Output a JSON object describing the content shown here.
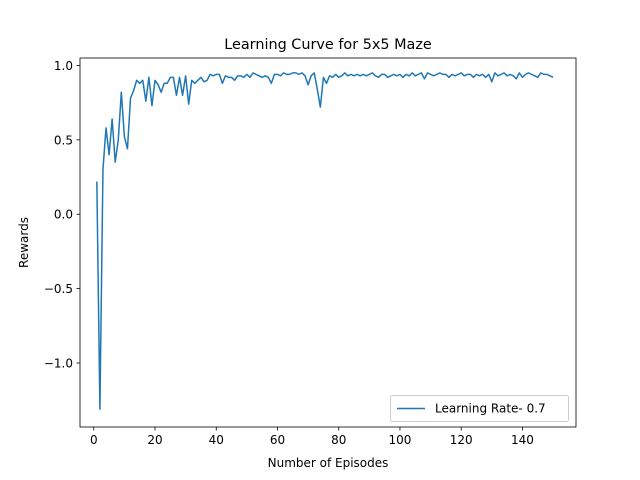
{
  "chart_data": {
    "type": "line",
    "title": "Learning Curve for 5x5 Maze",
    "xlabel": "Number of Episodes",
    "ylabel": "Rewards",
    "xlim": [
      -4.5,
      157.5
    ],
    "ylim": [
      -1.43,
      1.05
    ],
    "xticks": [
      0,
      20,
      40,
      60,
      80,
      100,
      120,
      140
    ],
    "xtick_labels": [
      "0",
      "20",
      "40",
      "60",
      "80",
      "100",
      "120",
      "140"
    ],
    "yticks": [
      -1.0,
      -0.5,
      0.0,
      0.5,
      1.0
    ],
    "ytick_labels": [
      "−1.0",
      "−0.5",
      "0.0",
      "0.5",
      "1.0"
    ],
    "grid": false,
    "legend_position": "lower-right",
    "series": [
      {
        "name": "Learning Rate- 0.7",
        "color": "#1f77b4",
        "x": [
          1,
          2,
          3,
          4,
          5,
          6,
          7,
          8,
          9,
          10,
          11,
          12,
          13,
          14,
          15,
          16,
          17,
          18,
          19,
          20,
          21,
          22,
          23,
          24,
          25,
          26,
          27,
          28,
          29,
          30,
          31,
          32,
          33,
          34,
          35,
          36,
          37,
          38,
          39,
          40,
          41,
          42,
          43,
          44,
          45,
          46,
          47,
          48,
          49,
          50,
          51,
          52,
          53,
          54,
          55,
          56,
          57,
          58,
          59,
          60,
          61,
          62,
          63,
          64,
          65,
          66,
          67,
          68,
          69,
          70,
          71,
          72,
          73,
          74,
          75,
          76,
          77,
          78,
          79,
          80,
          81,
          82,
          83,
          84,
          85,
          86,
          87,
          88,
          89,
          90,
          91,
          92,
          93,
          94,
          95,
          96,
          97,
          98,
          99,
          100,
          101,
          102,
          103,
          104,
          105,
          106,
          107,
          108,
          109,
          110,
          111,
          112,
          113,
          114,
          115,
          116,
          117,
          118,
          119,
          120,
          121,
          122,
          123,
          124,
          125,
          126,
          127,
          128,
          129,
          130,
          131,
          132,
          133,
          134,
          135,
          136,
          137,
          138,
          139,
          140,
          141,
          142,
          143,
          144,
          145,
          146,
          147,
          148,
          149,
          150
        ],
        "y": [
          0.22,
          -1.31,
          0.3,
          0.58,
          0.4,
          0.64,
          0.35,
          0.5,
          0.82,
          0.52,
          0.44,
          0.78,
          0.83,
          0.9,
          0.88,
          0.9,
          0.76,
          0.92,
          0.73,
          0.9,
          0.87,
          0.82,
          0.88,
          0.88,
          0.92,
          0.92,
          0.8,
          0.92,
          0.8,
          0.93,
          0.74,
          0.9,
          0.88,
          0.9,
          0.92,
          0.89,
          0.9,
          0.94,
          0.93,
          0.94,
          0.94,
          0.88,
          0.93,
          0.92,
          0.92,
          0.9,
          0.93,
          0.93,
          0.92,
          0.94,
          0.92,
          0.95,
          0.94,
          0.93,
          0.92,
          0.93,
          0.92,
          0.88,
          0.94,
          0.94,
          0.93,
          0.95,
          0.94,
          0.94,
          0.95,
          0.95,
          0.94,
          0.95,
          0.93,
          0.87,
          0.93,
          0.95,
          0.84,
          0.72,
          0.92,
          0.88,
          0.93,
          0.92,
          0.94,
          0.92,
          0.93,
          0.95,
          0.93,
          0.94,
          0.93,
          0.94,
          0.93,
          0.94,
          0.93,
          0.94,
          0.95,
          0.93,
          0.92,
          0.94,
          0.94,
          0.92,
          0.93,
          0.94,
          0.93,
          0.94,
          0.92,
          0.94,
          0.93,
          0.95,
          0.93,
          0.94,
          0.95,
          0.91,
          0.95,
          0.94,
          0.93,
          0.94,
          0.95,
          0.94,
          0.94,
          0.92,
          0.94,
          0.93,
          0.94,
          0.95,
          0.93,
          0.94,
          0.94,
          0.92,
          0.94,
          0.93,
          0.94,
          0.92,
          0.94,
          0.89,
          0.95,
          0.93,
          0.94,
          0.95,
          0.93,
          0.94,
          0.93,
          0.91,
          0.95,
          0.92,
          0.94,
          0.95,
          0.94,
          0.93,
          0.92,
          0.95,
          0.94,
          0.94,
          0.93,
          0.92
        ]
      }
    ]
  }
}
